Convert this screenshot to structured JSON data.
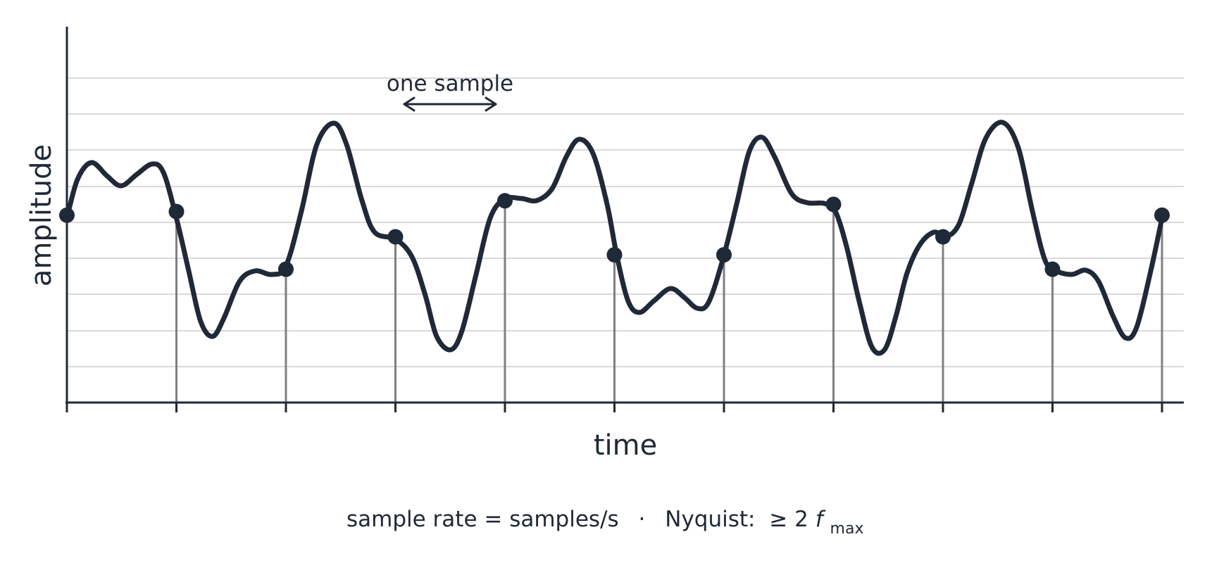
{
  "annotation": {
    "text": "one sample"
  },
  "axes": {
    "xlabel": "time",
    "ylabel": "amplitude"
  },
  "caption": {
    "prefix": "sample rate = samples/s",
    "separator": "·",
    "nyquist_label": "Nyquist:",
    "relation": "≥ 2",
    "symbol": "f",
    "subscript": "max"
  },
  "colors": {
    "ink": "#1f2937",
    "stem": "#808080",
    "grid": "#d9d9d9"
  },
  "chart_data": {
    "type": "line",
    "samples_count": 11,
    "sample_values": [
      0.52,
      0.53,
      0.37,
      0.46,
      0.56,
      0.41,
      0.41,
      0.55,
      0.46,
      0.37,
      0.52
    ],
    "grid": true,
    "ylim": [
      0,
      1
    ]
  }
}
